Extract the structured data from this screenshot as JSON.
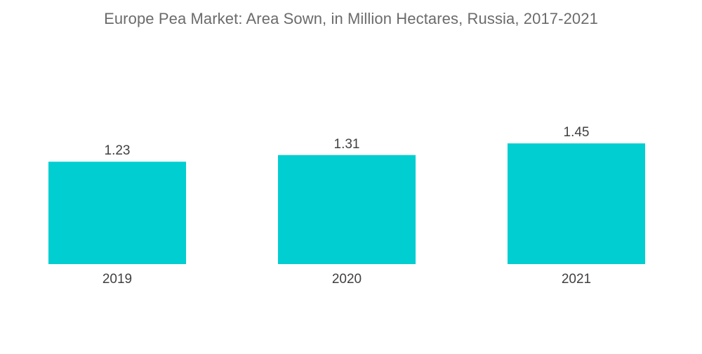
{
  "chart_data": {
    "type": "bar",
    "title": "Europe Pea Market: Area Sown, in Million Hectares, Russia, 2017-2021",
    "categories": [
      "2019",
      "2020",
      "2021"
    ],
    "values": [
      1.23,
      1.31,
      1.45
    ],
    "value_labels": [
      "1.23",
      "1.31",
      "1.45"
    ],
    "xlabel": "",
    "ylabel": "",
    "ylim": [
      0,
      1.8
    ],
    "grid": false,
    "legend": "none",
    "bar_color": "#00ced1"
  }
}
